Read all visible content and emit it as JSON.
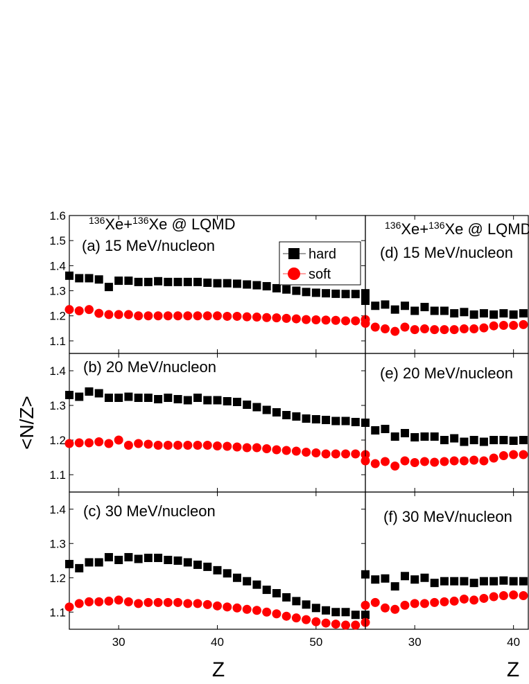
{
  "chart_data": [
    {
      "type": "scatter",
      "title": "(a) 15 MeV/nucleon",
      "reaction": [
        "136",
        "Xe+",
        "136",
        "Xe @ LQMD"
      ],
      "x": [
        25,
        26,
        27,
        28,
        29,
        30,
        31,
        32,
        33,
        34,
        35,
        36,
        37,
        38,
        39,
        40,
        41,
        42,
        43,
        44,
        45,
        46,
        47,
        48,
        49,
        50,
        51,
        52,
        53,
        54,
        55
      ],
      "xlim": [
        25,
        55
      ],
      "ylim": [
        1.05,
        1.6
      ],
      "yticks": [
        1.1,
        1.2,
        1.3,
        1.4,
        1.5,
        1.6
      ],
      "legend": "upper right",
      "series": [
        {
          "name": "hard",
          "color": "#000000",
          "marker": "square",
          "values": [
            1.36,
            1.35,
            1.35,
            1.345,
            1.315,
            1.34,
            1.34,
            1.335,
            1.335,
            1.338,
            1.335,
            1.335,
            1.335,
            1.335,
            1.332,
            1.33,
            1.33,
            1.328,
            1.325,
            1.322,
            1.318,
            1.31,
            1.305,
            1.3,
            1.295,
            1.292,
            1.29,
            1.288,
            1.287,
            1.287,
            1.29
          ]
        },
        {
          "name": "soft",
          "color": "#ff0000",
          "marker": "circle",
          "values": [
            1.225,
            1.22,
            1.225,
            1.21,
            1.205,
            1.205,
            1.205,
            1.2,
            1.2,
            1.2,
            1.2,
            1.2,
            1.2,
            1.2,
            1.2,
            1.2,
            1.198,
            1.198,
            1.196,
            1.195,
            1.193,
            1.192,
            1.19,
            1.188,
            1.185,
            1.184,
            1.183,
            1.182,
            1.18,
            1.18,
            1.185
          ]
        }
      ]
    },
    {
      "type": "scatter",
      "title": "(b) 20 MeV/nucleon",
      "ylabel": "<N/Z>",
      "x": [
        25,
        26,
        27,
        28,
        29,
        30,
        31,
        32,
        33,
        34,
        35,
        36,
        37,
        38,
        39,
        40,
        41,
        42,
        43,
        44,
        45,
        46,
        47,
        48,
        49,
        50,
        51,
        52,
        53,
        54,
        55
      ],
      "xlim": [
        25,
        55
      ],
      "ylim": [
        1.05,
        1.45
      ],
      "yticks": [
        1.1,
        1.2,
        1.3,
        1.4
      ],
      "series": [
        {
          "color": "#000000",
          "marker": "square",
          "values": [
            1.33,
            1.325,
            1.34,
            1.335,
            1.322,
            1.322,
            1.325,
            1.322,
            1.322,
            1.318,
            1.322,
            1.318,
            1.315,
            1.322,
            1.315,
            1.315,
            1.312,
            1.31,
            1.302,
            1.295,
            1.287,
            1.28,
            1.272,
            1.268,
            1.262,
            1.26,
            1.258,
            1.255,
            1.255,
            1.252,
            1.25
          ]
        },
        {
          "color": "#ff0000",
          "marker": "circle",
          "values": [
            1.19,
            1.192,
            1.192,
            1.195,
            1.19,
            1.2,
            1.185,
            1.19,
            1.188,
            1.185,
            1.185,
            1.185,
            1.185,
            1.185,
            1.185,
            1.183,
            1.182,
            1.18,
            1.178,
            1.178,
            1.175,
            1.172,
            1.17,
            1.168,
            1.165,
            1.163,
            1.16,
            1.16,
            1.16,
            1.16,
            1.158
          ]
        }
      ]
    },
    {
      "type": "scatter",
      "title": "(c) 30 MeV/nucleon",
      "xlabel": "Z",
      "x": [
        25,
        26,
        27,
        28,
        29,
        30,
        31,
        32,
        33,
        34,
        35,
        36,
        37,
        38,
        39,
        40,
        41,
        42,
        43,
        44,
        45,
        46,
        47,
        48,
        49,
        50,
        51,
        52,
        53,
        54,
        55
      ],
      "xlim": [
        25,
        55
      ],
      "xticks": [
        30,
        40,
        50
      ],
      "ylim": [
        1.05,
        1.45
      ],
      "yticks": [
        1.1,
        1.2,
        1.3,
        1.4
      ],
      "series": [
        {
          "color": "#000000",
          "marker": "square",
          "values": [
            1.24,
            1.228,
            1.245,
            1.245,
            1.26,
            1.252,
            1.26,
            1.255,
            1.258,
            1.258,
            1.252,
            1.25,
            1.245,
            1.238,
            1.232,
            1.222,
            1.213,
            1.2,
            1.19,
            1.18,
            1.165,
            1.155,
            1.143,
            1.132,
            1.122,
            1.112,
            1.105,
            1.1,
            1.1,
            1.092,
            1.092
          ]
        },
        {
          "color": "#ff0000",
          "marker": "circle",
          "values": [
            1.115,
            1.125,
            1.13,
            1.13,
            1.132,
            1.135,
            1.13,
            1.125,
            1.128,
            1.128,
            1.128,
            1.128,
            1.125,
            1.125,
            1.122,
            1.118,
            1.115,
            1.112,
            1.108,
            1.105,
            1.1,
            1.095,
            1.088,
            1.083,
            1.078,
            1.072,
            1.068,
            1.065,
            1.062,
            1.062,
            1.07
          ]
        }
      ]
    },
    {
      "type": "scatter",
      "title": "(d) 15 MeV/nucleon",
      "reaction": [
        "136",
        "Xe+",
        "136",
        "Xe @ LQMD"
      ],
      "x": [
        25,
        26,
        27,
        28,
        29,
        30,
        31,
        32,
        33,
        34,
        35,
        36,
        37,
        38,
        39,
        40,
        41
      ],
      "xlim": [
        25,
        41.5
      ],
      "ylim": [
        1.05,
        1.6
      ],
      "series": [
        {
          "color": "#000000",
          "marker": "square",
          "values": [
            1.26,
            1.24,
            1.245,
            1.225,
            1.24,
            1.22,
            1.235,
            1.22,
            1.22,
            1.21,
            1.215,
            1.205,
            1.21,
            1.205,
            1.21,
            1.205,
            1.21
          ]
        },
        {
          "color": "#ff0000",
          "marker": "circle",
          "values": [
            1.17,
            1.155,
            1.148,
            1.138,
            1.155,
            1.145,
            1.148,
            1.145,
            1.145,
            1.145,
            1.148,
            1.148,
            1.152,
            1.16,
            1.162,
            1.162,
            1.165
          ]
        }
      ]
    },
    {
      "type": "scatter",
      "title": "(e) 20 MeV/nucleon",
      "x": [
        25,
        26,
        27,
        28,
        29,
        30,
        31,
        32,
        33,
        34,
        35,
        36,
        37,
        38,
        39,
        40,
        41
      ],
      "xlim": [
        25,
        41.5
      ],
      "ylim": [
        1.05,
        1.45
      ],
      "series": [
        {
          "color": "#000000",
          "marker": "square",
          "values": [
            1.25,
            1.228,
            1.232,
            1.21,
            1.22,
            1.208,
            1.21,
            1.21,
            1.2,
            1.205,
            1.195,
            1.2,
            1.195,
            1.2,
            1.2,
            1.198,
            1.2
          ]
        },
        {
          "color": "#ff0000",
          "marker": "circle",
          "values": [
            1.14,
            1.132,
            1.138,
            1.125,
            1.14,
            1.135,
            1.138,
            1.136,
            1.138,
            1.14,
            1.14,
            1.142,
            1.14,
            1.148,
            1.155,
            1.158,
            1.158
          ]
        }
      ]
    },
    {
      "type": "scatter",
      "title": "(f) 30 MeV/nucleon",
      "xlabel": "Z",
      "x": [
        25,
        26,
        27,
        28,
        29,
        30,
        31,
        32,
        33,
        34,
        35,
        36,
        37,
        38,
        39,
        40,
        41
      ],
      "xlim": [
        25,
        41.5
      ],
      "xticks": [
        30,
        40
      ],
      "ylim": [
        1.05,
        1.45
      ],
      "series": [
        {
          "color": "#000000",
          "marker": "square",
          "values": [
            1.21,
            1.195,
            1.198,
            1.175,
            1.205,
            1.195,
            1.2,
            1.185,
            1.19,
            1.19,
            1.19,
            1.185,
            1.19,
            1.19,
            1.192,
            1.19,
            1.19
          ]
        },
        {
          "color": "#ff0000",
          "marker": "circle",
          "values": [
            1.12,
            1.128,
            1.112,
            1.108,
            1.12,
            1.125,
            1.125,
            1.128,
            1.13,
            1.132,
            1.138,
            1.135,
            1.14,
            1.145,
            1.148,
            1.15,
            1.148
          ]
        }
      ]
    }
  ]
}
